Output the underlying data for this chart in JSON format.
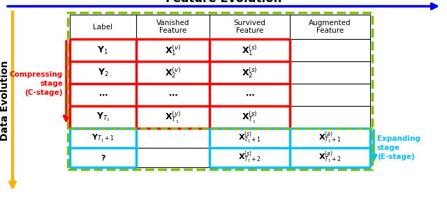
{
  "title": "Feature Evolution",
  "ylabel": "Data Evolution",
  "col_labels": [
    "Label",
    "Vanished\nFeature",
    "Survived\nFeature",
    "Augmented\nFeature"
  ],
  "row_labels_c": [
    "$\\mathbf{Y}_1$",
    "$\\mathbf{Y}_2$",
    "$\\mathbf{\\cdots}$",
    "$\\mathbf{Y}_{T_1}$"
  ],
  "row_labels_e": [
    "$\\mathbf{Y}_{T_1+1}$",
    "$\\mathbf{?}$"
  ],
  "cell_v": [
    "$\\mathbf{X}_1^{(v)}$",
    "$\\mathbf{X}_2^{(v)}$",
    "$\\mathbf{\\cdots}$",
    "$\\mathbf{X}_{T_1}^{(v)}$"
  ],
  "cell_s_c": [
    "$\\mathbf{X}_1^{(s)}$",
    "$\\mathbf{X}_2^{(s)}$",
    "$\\mathbf{\\cdots}$",
    "$\\mathbf{X}_{T_1}^{(s)}$"
  ],
  "cell_s_e": [
    "$\\mathbf{X}_{T_1+1}^{(s)}$",
    "$\\mathbf{X}_{T_1+2}^{(s)}$"
  ],
  "cell_a": [
    "$\\mathbf{X}_{T_1+1}^{(a)}$",
    "$\\mathbf{X}_{T_1+2}^{(a)}$"
  ],
  "compressing_label": "Compressing\nstage\n(C-stage)",
  "expanding_label": "Expanding\nstage\n(E-stage)",
  "red_color": "#FF0000",
  "cyan_color": "#00BFFF",
  "green_dashed": "#7DC000",
  "blue_arrow": "#0000EE",
  "yellow_arrow": "#FFB300",
  "bg_color": "#FFFFFF"
}
